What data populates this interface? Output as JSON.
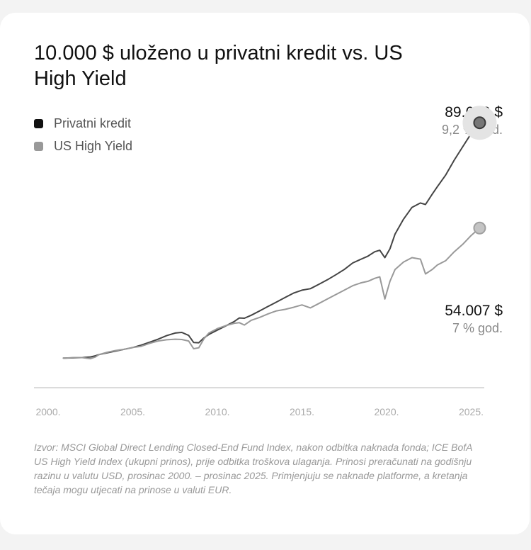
{
  "chart_data": {
    "type": "line",
    "title": "10.000 $ uloženo u privatni kredit vs. US High Yield",
    "x_ticks": [
      "2000.",
      "2005.",
      "2010.",
      "2015.",
      "2020.",
      "2025."
    ],
    "xlim": [
      2000,
      2026
    ],
    "ylim": [
      0,
      100000
    ],
    "grid": false,
    "legend_position": "top-left",
    "x": [
      2000.9,
      2001.0,
      2001.5,
      2002.0,
      2002.5,
      2002.8,
      2003.0,
      2003.5,
      2004.0,
      2004.5,
      2005.0,
      2005.5,
      2006.0,
      2006.5,
      2007.0,
      2007.5,
      2007.9,
      2008.3,
      2008.6,
      2008.9,
      2009.2,
      2009.5,
      2010.0,
      2010.5,
      2011.0,
      2011.3,
      2011.6,
      2012.0,
      2012.5,
      2013.0,
      2013.5,
      2014.0,
      2014.5,
      2015.0,
      2015.5,
      2016.0,
      2016.5,
      2017.0,
      2017.5,
      2018.0,
      2018.5,
      2018.9,
      2019.3,
      2019.6,
      2019.9,
      2020.2,
      2020.5,
      2021.0,
      2021.5,
      2022.0,
      2022.3,
      2022.7,
      2023.0,
      2023.5,
      2024.0,
      2024.5,
      2025.0,
      2025.5
    ],
    "series": [
      {
        "name": "Privatni kredit",
        "color": "#444444",
        "end_value": "89.643 $",
        "cagr": "9,2 % god.",
        "values": [
          10000,
          10000,
          10100,
          10200,
          10400,
          10800,
          11200,
          11800,
          12400,
          13000,
          13600,
          14400,
          15400,
          16400,
          17600,
          18500,
          18700,
          17700,
          15300,
          15200,
          16800,
          18000,
          19500,
          20900,
          22400,
          23600,
          23500,
          24500,
          26000,
          27500,
          29000,
          30500,
          32000,
          33000,
          33500,
          35000,
          36500,
          38200,
          40000,
          42200,
          43500,
          44500,
          46000,
          46500,
          44000,
          47000,
          52000,
          57000,
          61000,
          62500,
          62000,
          65500,
          68000,
          72000,
          77000,
          81500,
          86000,
          89643
        ]
      },
      {
        "name": "US High Yield",
        "color": "#999999",
        "end_value": "54.007 $",
        "cagr": "7 % god.",
        "values": [
          10000,
          10000,
          10200,
          10200,
          9800,
          10400,
          11200,
          12000,
          12600,
          13000,
          13600,
          14000,
          15000,
          15800,
          16200,
          16400,
          16300,
          15800,
          13200,
          13500,
          16500,
          18500,
          20000,
          21000,
          21800,
          22000,
          21200,
          22800,
          23800,
          25000,
          26000,
          26500,
          27200,
          28000,
          27000,
          28500,
          30000,
          31500,
          33000,
          34500,
          35500,
          36000,
          37000,
          37500,
          30000,
          36000,
          40000,
          42500,
          44000,
          43500,
          38500,
          40000,
          41500,
          43000,
          46000,
          48500,
          51500,
          54007
        ]
      }
    ]
  },
  "source_note": "Izvor: MSCI Global Direct Lending Closed-End Fund Index, nakon odbitka naknada fonda; ICE BofA US High Yield Index (ukupni prinos), prije odbitka troškova ulaganja. Prinosi preračunati na godišnju razinu u valutu USD, prosinac 2000. – prosinac 2025. Primjenjuju se naknade platforme, a kretanja tečaja mogu utjecati na prinose u valuti EUR."
}
